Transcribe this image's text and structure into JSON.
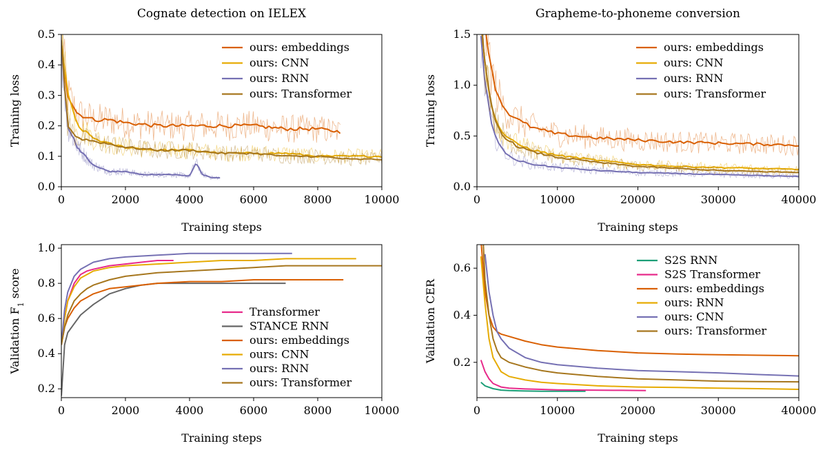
{
  "chart_data": [
    {
      "id": "tl_cognate",
      "type": "line",
      "title": "Cognate detection on IELEX",
      "xlabel": "Training steps",
      "ylabel": "Training loss",
      "xlim": [
        0,
        10000
      ],
      "ylim": [
        0,
        0.5
      ],
      "xticks": [
        0,
        2000,
        4000,
        6000,
        8000,
        10000
      ],
      "xtick_labels": [
        "0",
        "2000",
        "4000",
        "6000",
        "8000",
        "10000"
      ],
      "yticks": [
        0,
        0.1,
        0.2,
        0.3,
        0.4,
        0.5
      ],
      "ytick_labels": [
        "0.0",
        "0.1",
        "0.2",
        "0.3",
        "0.4",
        "0.5"
      ],
      "grid": false,
      "legend": "top-right",
      "noisy_raw_traces": true,
      "series": [
        {
          "name": "ours: embeddings",
          "color": "#d95f02",
          "x": [
            0,
            200,
            500,
            1000,
            1500,
            2000,
            3000,
            4000,
            5000,
            6000,
            7000,
            8000,
            8700
          ],
          "y": [
            0.48,
            0.3,
            0.24,
            0.22,
            0.22,
            0.21,
            0.2,
            0.2,
            0.2,
            0.2,
            0.19,
            0.19,
            0.18
          ]
        },
        {
          "name": "ours: CNN",
          "color": "#e6ab02",
          "x": [
            0,
            200,
            500,
            1000,
            1500,
            2000,
            3000,
            4000,
            5000,
            6000,
            7000,
            8000,
            9000,
            10000
          ],
          "y": [
            0.48,
            0.3,
            0.2,
            0.16,
            0.14,
            0.13,
            0.12,
            0.12,
            0.11,
            0.11,
            0.11,
            0.1,
            0.1,
            0.1
          ]
        },
        {
          "name": "ours: RNN",
          "color": "#7570b3",
          "x": [
            0,
            200,
            500,
            1000,
            1500,
            2000,
            2500,
            3000,
            3500,
            4000,
            4200,
            4400,
            4700,
            4950
          ],
          "y": [
            0.45,
            0.2,
            0.13,
            0.07,
            0.05,
            0.05,
            0.04,
            0.04,
            0.04,
            0.035,
            0.08,
            0.04,
            0.03,
            0.03
          ]
        },
        {
          "name": "ours: Transformer",
          "color": "#a6761d",
          "x": [
            0,
            200,
            500,
            1000,
            1500,
            2000,
            3000,
            4000,
            5000,
            6000,
            7000,
            8000,
            9000,
            10000
          ],
          "y": [
            0.48,
            0.2,
            0.16,
            0.15,
            0.14,
            0.13,
            0.12,
            0.12,
            0.11,
            0.11,
            0.1,
            0.1,
            0.09,
            0.09
          ]
        }
      ]
    },
    {
      "id": "tl_g2p",
      "type": "line",
      "title": "Grapheme-to-phoneme conversion",
      "xlabel": "Training steps",
      "ylabel": "Training loss",
      "xlim": [
        0,
        40000
      ],
      "ylim": [
        0,
        1.5
      ],
      "xticks": [
        0,
        10000,
        20000,
        30000,
        40000
      ],
      "xtick_labels": [
        "0",
        "10000",
        "20000",
        "30000",
        "40000"
      ],
      "yticks": [
        0,
        0.5,
        1.0,
        1.5
      ],
      "ytick_labels": [
        "0.0",
        "0.5",
        "1.0",
        "1.5"
      ],
      "grid": false,
      "legend": "top-right",
      "noisy_raw_traces": true,
      "series": [
        {
          "name": "ours: embeddings",
          "color": "#d95f02",
          "x": [
            1000,
            2000,
            3000,
            4000,
            5000,
            7000,
            10000,
            15000,
            20000,
            25000,
            30000,
            35000,
            40000
          ],
          "y": [
            1.6,
            1.05,
            0.82,
            0.72,
            0.66,
            0.58,
            0.52,
            0.48,
            0.46,
            0.44,
            0.43,
            0.42,
            0.41
          ]
        },
        {
          "name": "ours: CNN",
          "color": "#e6ab02",
          "x": [
            500,
            1000,
            2000,
            3000,
            4000,
            5000,
            7000,
            10000,
            15000,
            20000,
            25000,
            30000,
            35000,
            40000
          ],
          "y": [
            1.6,
            1.2,
            0.72,
            0.55,
            0.47,
            0.42,
            0.36,
            0.31,
            0.26,
            0.22,
            0.2,
            0.19,
            0.18,
            0.17
          ]
        },
        {
          "name": "ours: RNN",
          "color": "#7570b3",
          "x": [
            500,
            1000,
            2000,
            3000,
            4000,
            5000,
            7000,
            10000,
            15000,
            20000,
            25000,
            30000,
            35000,
            40000
          ],
          "y": [
            1.5,
            1.0,
            0.55,
            0.38,
            0.3,
            0.26,
            0.22,
            0.19,
            0.16,
            0.14,
            0.13,
            0.12,
            0.11,
            0.1
          ]
        },
        {
          "name": "ours: Transformer",
          "color": "#a6761d",
          "x": [
            500,
            1000,
            2000,
            3000,
            4000,
            5000,
            7000,
            10000,
            15000,
            20000,
            25000,
            30000,
            35000,
            40000
          ],
          "y": [
            1.6,
            1.2,
            0.7,
            0.53,
            0.45,
            0.4,
            0.34,
            0.29,
            0.24,
            0.2,
            0.18,
            0.16,
            0.15,
            0.14
          ]
        }
      ]
    },
    {
      "id": "vf1_cognate",
      "type": "line",
      "title": "",
      "xlabel": "Training steps",
      "ylabel": "Validation F",
      "ylabel_sub": "1",
      "ylabel_suffix": " score",
      "xlim": [
        0,
        10000
      ],
      "ylim": [
        0.15,
        1.02
      ],
      "xticks": [
        0,
        2000,
        4000,
        6000,
        8000,
        10000
      ],
      "xtick_labels": [
        "0",
        "2000",
        "4000",
        "6000",
        "8000",
        "10000"
      ],
      "yticks": [
        0.2,
        0.4,
        0.6,
        0.8,
        1.0
      ],
      "ytick_labels": [
        "0.2",
        "0.4",
        "0.6",
        "0.8",
        "1.0"
      ],
      "grid": false,
      "legend": "bottom-right",
      "noisy_raw_traces": false,
      "series": [
        {
          "name": "Transformer",
          "color": "#e7298a",
          "x": [
            0,
            100,
            200,
            400,
            600,
            800,
            1000,
            1500,
            2000,
            2500,
            3000,
            3500
          ],
          "y": [
            0.45,
            0.6,
            0.7,
            0.8,
            0.85,
            0.87,
            0.88,
            0.9,
            0.91,
            0.92,
            0.93,
            0.93
          ]
        },
        {
          "name": "STANCE RNN",
          "color": "#666666",
          "x": [
            0,
            50,
            100,
            200,
            400,
            600,
            800,
            1000,
            1500,
            2000,
            2500,
            3000,
            4000,
            5000,
            6000,
            7000
          ],
          "y": [
            0.16,
            0.3,
            0.45,
            0.52,
            0.57,
            0.62,
            0.65,
            0.68,
            0.74,
            0.77,
            0.79,
            0.8,
            0.8,
            0.8,
            0.8,
            0.8
          ]
        },
        {
          "name": "ours: embeddings",
          "color": "#d95f02",
          "x": [
            0,
            100,
            200,
            400,
            600,
            800,
            1000,
            1500,
            2000,
            3000,
            4000,
            5000,
            6000,
            7000,
            8000,
            8800
          ],
          "y": [
            0.45,
            0.55,
            0.6,
            0.66,
            0.7,
            0.72,
            0.74,
            0.77,
            0.78,
            0.8,
            0.81,
            0.81,
            0.82,
            0.82,
            0.82,
            0.82
          ]
        },
        {
          "name": "ours: CNN",
          "color": "#e6ab02",
          "x": [
            0,
            100,
            200,
            400,
            600,
            800,
            1000,
            1500,
            2000,
            3000,
            4000,
            5000,
            6000,
            7000,
            8000,
            9200
          ],
          "y": [
            0.45,
            0.6,
            0.7,
            0.78,
            0.83,
            0.85,
            0.87,
            0.89,
            0.9,
            0.91,
            0.92,
            0.93,
            0.93,
            0.94,
            0.94,
            0.94
          ]
        },
        {
          "name": "ours: RNN",
          "color": "#7570b3",
          "x": [
            0,
            100,
            200,
            400,
            600,
            800,
            1000,
            1500,
            2000,
            3000,
            4000,
            5000,
            6000,
            7200
          ],
          "y": [
            0.45,
            0.65,
            0.75,
            0.84,
            0.88,
            0.9,
            0.92,
            0.94,
            0.95,
            0.96,
            0.97,
            0.97,
            0.97,
            0.97
          ]
        },
        {
          "name": "ours: Transformer",
          "color": "#a6761d",
          "x": [
            0,
            100,
            200,
            400,
            600,
            800,
            1000,
            1500,
            2000,
            3000,
            4000,
            5000,
            6000,
            7000,
            8000,
            9000,
            10000
          ],
          "y": [
            0.45,
            0.55,
            0.62,
            0.7,
            0.74,
            0.77,
            0.79,
            0.82,
            0.84,
            0.86,
            0.87,
            0.88,
            0.89,
            0.9,
            0.9,
            0.9,
            0.9
          ]
        }
      ]
    },
    {
      "id": "vcer_g2p",
      "type": "line",
      "title": "",
      "xlabel": "Training steps",
      "ylabel": "Validation CER",
      "xlim": [
        0,
        40000
      ],
      "ylim": [
        0.05,
        0.7
      ],
      "xticks": [
        0,
        10000,
        20000,
        30000,
        40000
      ],
      "xtick_labels": [
        "0",
        "10000",
        "20000",
        "30000",
        "40000"
      ],
      "yticks": [
        0.2,
        0.4,
        0.6
      ],
      "ytick_labels": [
        "0.2",
        "0.4",
        "0.6"
      ],
      "grid": false,
      "legend": "top-right",
      "noisy_raw_traces": false,
      "series": [
        {
          "name": "S2S RNN",
          "color": "#1b9e77",
          "x": [
            500,
            1000,
            2000,
            3000,
            4000,
            6000,
            8000,
            10000,
            12000,
            13500
          ],
          "y": [
            0.115,
            0.1,
            0.088,
            0.082,
            0.08,
            0.078,
            0.077,
            0.077,
            0.077,
            0.077
          ]
        },
        {
          "name": "S2S Transformer",
          "color": "#e7298a",
          "x": [
            500,
            1000,
            1500,
            2000,
            3000,
            4000,
            6000,
            8000,
            10000,
            14000,
            18000,
            21000
          ],
          "y": [
            0.21,
            0.16,
            0.13,
            0.11,
            0.095,
            0.09,
            0.087,
            0.085,
            0.083,
            0.082,
            0.081,
            0.08
          ]
        },
        {
          "name": "ours: embeddings",
          "color": "#d95f02",
          "x": [
            500,
            1000,
            1500,
            2000,
            2500,
            3000,
            4000,
            6000,
            8000,
            10000,
            15000,
            20000,
            25000,
            30000,
            35000,
            40000
          ],
          "y": [
            0.72,
            0.5,
            0.4,
            0.35,
            0.33,
            0.32,
            0.31,
            0.29,
            0.275,
            0.265,
            0.25,
            0.24,
            0.235,
            0.232,
            0.23,
            0.228
          ]
        },
        {
          "name": "ours: RNN",
          "color": "#e6ab02",
          "x": [
            500,
            1000,
            1500,
            2000,
            3000,
            4000,
            6000,
            8000,
            10000,
            15000,
            20000,
            25000,
            30000,
            35000,
            40000
          ],
          "y": [
            0.65,
            0.45,
            0.3,
            0.22,
            0.16,
            0.14,
            0.125,
            0.115,
            0.11,
            0.1,
            0.095,
            0.093,
            0.09,
            0.088,
            0.085
          ]
        },
        {
          "name": "ours: CNN",
          "color": "#7570b3",
          "x": [
            1000,
            1500,
            2000,
            2500,
            3000,
            4000,
            6000,
            8000,
            10000,
            15000,
            20000,
            25000,
            30000,
            35000,
            40000
          ],
          "y": [
            0.66,
            0.5,
            0.4,
            0.33,
            0.3,
            0.26,
            0.22,
            0.2,
            0.19,
            0.175,
            0.165,
            0.16,
            0.155,
            0.148,
            0.142
          ]
        },
        {
          "name": "ours: Transformer",
          "color": "#a6761d",
          "x": [
            800,
            1000,
            1500,
            2000,
            2500,
            3000,
            4000,
            6000,
            8000,
            10000,
            15000,
            20000,
            25000,
            30000,
            35000,
            40000
          ],
          "y": [
            0.7,
            0.55,
            0.4,
            0.3,
            0.25,
            0.22,
            0.2,
            0.18,
            0.165,
            0.155,
            0.14,
            0.13,
            0.125,
            0.12,
            0.118,
            0.117
          ]
        }
      ]
    }
  ]
}
